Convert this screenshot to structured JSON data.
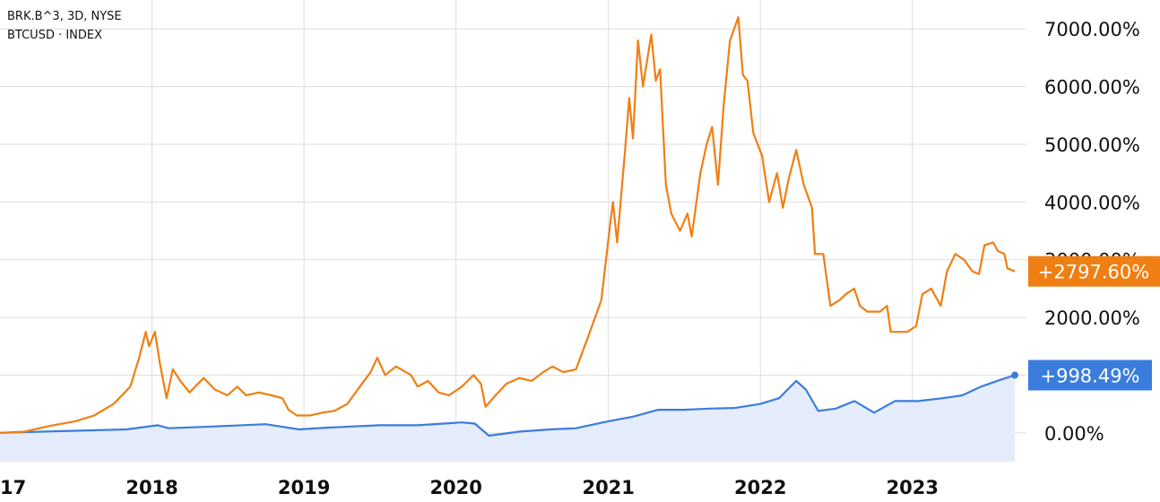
{
  "legend": {
    "line1": "BRK.B^3, 3D, NYSE",
    "line2": "BTCUSD · INDEX"
  },
  "colors": {
    "btc_line": "#f07f13",
    "brk_line": "#3b7ddd",
    "brk_fill": "#e5ecfb",
    "grid": "#dddddd"
  },
  "chart_data": {
    "type": "line",
    "x_axis_type": "date",
    "xlim": [
      "2017-01-01",
      "2023-09-06"
    ],
    "ylim": [
      -500,
      7500
    ],
    "x_tick_labels": [
      {
        "date": "2017-01-01",
        "label": "17"
      },
      {
        "date": "2018-01-01",
        "label": "2018"
      },
      {
        "date": "2019-01-01",
        "label": "2019"
      },
      {
        "date": "2020-01-01",
        "label": "2020"
      },
      {
        "date": "2021-01-01",
        "label": "2021"
      },
      {
        "date": "2022-01-01",
        "label": "2022"
      },
      {
        "date": "2023-01-01",
        "label": "2023"
      }
    ],
    "y_ticks": [
      {
        "value": 0,
        "label": "0.00%"
      },
      {
        "value": 1000,
        "label": ""
      },
      {
        "value": 2000,
        "label": "2000.00%"
      },
      {
        "value": 3000,
        "label": "3000.00%"
      },
      {
        "value": 4000,
        "label": "4000.00%"
      },
      {
        "value": 5000,
        "label": "5000.00%"
      },
      {
        "value": 6000,
        "label": "6000.00%"
      },
      {
        "value": 7000,
        "label": "7000.00%"
      }
    ],
    "series": [
      {
        "key": "btc",
        "last_value_label": "+2797.60%",
        "points": [
          [
            "2017-01-01",
            0
          ],
          [
            "2017-03-01",
            20
          ],
          [
            "2017-05-01",
            120
          ],
          [
            "2017-07-01",
            200
          ],
          [
            "2017-08-15",
            300
          ],
          [
            "2017-10-01",
            500
          ],
          [
            "2017-11-10",
            800
          ],
          [
            "2017-12-01",
            1300
          ],
          [
            "2017-12-17",
            1750
          ],
          [
            "2017-12-25",
            1500
          ],
          [
            "2018-01-08",
            1750
          ],
          [
            "2018-01-20",
            1200
          ],
          [
            "2018-02-05",
            600
          ],
          [
            "2018-02-20",
            1100
          ],
          [
            "2018-03-10",
            900
          ],
          [
            "2018-04-01",
            700
          ],
          [
            "2018-05-05",
            950
          ],
          [
            "2018-06-01",
            750
          ],
          [
            "2018-07-01",
            650
          ],
          [
            "2018-07-25",
            800
          ],
          [
            "2018-08-15",
            650
          ],
          [
            "2018-09-15",
            700
          ],
          [
            "2018-10-15",
            650
          ],
          [
            "2018-11-10",
            600
          ],
          [
            "2018-11-25",
            400
          ],
          [
            "2018-12-15",
            300
          ],
          [
            "2019-01-15",
            300
          ],
          [
            "2019-02-15",
            350
          ],
          [
            "2019-03-15",
            380
          ],
          [
            "2019-04-15",
            500
          ],
          [
            "2019-05-15",
            800
          ],
          [
            "2019-06-10",
            1050
          ],
          [
            "2019-06-26",
            1300
          ],
          [
            "2019-07-15",
            1000
          ],
          [
            "2019-08-10",
            1150
          ],
          [
            "2019-09-15",
            1000
          ],
          [
            "2019-10-01",
            800
          ],
          [
            "2019-10-26",
            900
          ],
          [
            "2019-11-20",
            700
          ],
          [
            "2019-12-15",
            650
          ],
          [
            "2020-01-15",
            800
          ],
          [
            "2020-02-12",
            1000
          ],
          [
            "2020-03-01",
            850
          ],
          [
            "2020-03-12",
            450
          ],
          [
            "2020-04-05",
            650
          ],
          [
            "2020-05-01",
            850
          ],
          [
            "2020-06-01",
            950
          ],
          [
            "2020-07-01",
            900
          ],
          [
            "2020-07-28",
            1050
          ],
          [
            "2020-08-20",
            1150
          ],
          [
            "2020-09-15",
            1050
          ],
          [
            "2020-10-15",
            1100
          ],
          [
            "2020-11-15",
            1700
          ],
          [
            "2020-12-15",
            2300
          ],
          [
            "2021-01-05",
            3600
          ],
          [
            "2021-01-12",
            4000
          ],
          [
            "2021-01-22",
            3300
          ],
          [
            "2021-02-10",
            4900
          ],
          [
            "2021-02-20",
            5800
          ],
          [
            "2021-03-01",
            5100
          ],
          [
            "2021-03-13",
            6800
          ],
          [
            "2021-03-25",
            6000
          ],
          [
            "2021-04-14",
            6900
          ],
          [
            "2021-04-25",
            6100
          ],
          [
            "2021-05-05",
            6300
          ],
          [
            "2021-05-19",
            4300
          ],
          [
            "2021-06-01",
            3800
          ],
          [
            "2021-06-22",
            3500
          ],
          [
            "2021-07-10",
            3800
          ],
          [
            "2021-07-20",
            3400
          ],
          [
            "2021-08-10",
            4500
          ],
          [
            "2021-08-25",
            5000
          ],
          [
            "2021-09-07",
            5300
          ],
          [
            "2021-09-21",
            4300
          ],
          [
            "2021-10-05",
            5700
          ],
          [
            "2021-10-20",
            6800
          ],
          [
            "2021-11-09",
            7200
          ],
          [
            "2021-11-20",
            6200
          ],
          [
            "2021-12-01",
            6100
          ],
          [
            "2021-12-15",
            5200
          ],
          [
            "2022-01-05",
            4800
          ],
          [
            "2022-01-22",
            4000
          ],
          [
            "2022-02-10",
            4500
          ],
          [
            "2022-02-24",
            3900
          ],
          [
            "2022-03-10",
            4400
          ],
          [
            "2022-03-28",
            4900
          ],
          [
            "2022-04-15",
            4300
          ],
          [
            "2022-05-05",
            3900
          ],
          [
            "2022-05-12",
            3100
          ],
          [
            "2022-06-01",
            3100
          ],
          [
            "2022-06-18",
            2200
          ],
          [
            "2022-07-10",
            2300
          ],
          [
            "2022-07-25",
            2400
          ],
          [
            "2022-08-14",
            2500
          ],
          [
            "2022-08-28",
            2200
          ],
          [
            "2022-09-15",
            2100
          ],
          [
            "2022-10-15",
            2100
          ],
          [
            "2022-11-01",
            2200
          ],
          [
            "2022-11-10",
            1750
          ],
          [
            "2022-12-01",
            1750
          ],
          [
            "2022-12-20",
            1750
          ],
          [
            "2023-01-10",
            1850
          ],
          [
            "2023-01-25",
            2400
          ],
          [
            "2023-02-15",
            2500
          ],
          [
            "2023-03-10",
            2200
          ],
          [
            "2023-03-25",
            2800
          ],
          [
            "2023-04-14",
            3100
          ],
          [
            "2023-05-05",
            3000
          ],
          [
            "2023-05-25",
            2800
          ],
          [
            "2023-06-10",
            2750
          ],
          [
            "2023-06-23",
            3250
          ],
          [
            "2023-07-14",
            3300
          ],
          [
            "2023-07-25",
            3150
          ],
          [
            "2023-08-10",
            3100
          ],
          [
            "2023-08-17",
            2850
          ],
          [
            "2023-09-04",
            2797.6
          ]
        ]
      },
      {
        "key": "brk",
        "last_value_label": "+998.49%",
        "points": [
          [
            "2017-01-01",
            0
          ],
          [
            "2017-06-01",
            30
          ],
          [
            "2017-11-01",
            60
          ],
          [
            "2018-01-15",
            130
          ],
          [
            "2018-02-10",
            80
          ],
          [
            "2018-06-01",
            110
          ],
          [
            "2018-10-01",
            150
          ],
          [
            "2018-12-20",
            60
          ],
          [
            "2019-03-01",
            90
          ],
          [
            "2019-07-01",
            130
          ],
          [
            "2019-10-01",
            130
          ],
          [
            "2020-01-15",
            180
          ],
          [
            "2020-02-15",
            160
          ],
          [
            "2020-03-20",
            -50
          ],
          [
            "2020-06-01",
            20
          ],
          [
            "2020-08-15",
            60
          ],
          [
            "2020-10-15",
            80
          ],
          [
            "2021-01-01",
            200
          ],
          [
            "2021-03-01",
            280
          ],
          [
            "2021-05-01",
            400
          ],
          [
            "2021-07-01",
            400
          ],
          [
            "2021-09-01",
            420
          ],
          [
            "2021-11-01",
            430
          ],
          [
            "2022-01-01",
            500
          ],
          [
            "2022-02-15",
            600
          ],
          [
            "2022-03-28",
            900
          ],
          [
            "2022-04-20",
            750
          ],
          [
            "2022-05-20",
            380
          ],
          [
            "2022-07-01",
            420
          ],
          [
            "2022-08-15",
            550
          ],
          [
            "2022-10-01",
            350
          ],
          [
            "2022-11-20",
            550
          ],
          [
            "2023-01-15",
            550
          ],
          [
            "2023-03-15",
            600
          ],
          [
            "2023-05-01",
            650
          ],
          [
            "2023-06-15",
            800
          ],
          [
            "2023-08-01",
            920
          ],
          [
            "2023-09-04",
            998.49
          ]
        ]
      }
    ]
  }
}
